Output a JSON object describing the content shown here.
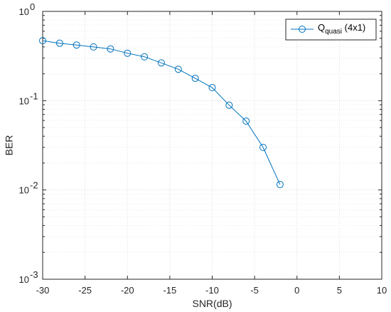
{
  "chart_data": {
    "type": "line",
    "title": "",
    "xlabel": "SNR(dB)",
    "ylabel": "BER",
    "xlim": [
      -30,
      10
    ],
    "ylim": [
      0.001,
      1
    ],
    "yscale": "log",
    "grid": true,
    "x_ticks": [
      -30,
      -25,
      -20,
      -15,
      -10,
      -5,
      0,
      5,
      10
    ],
    "x_tick_labels": [
      "-30",
      "-25",
      "-20",
      "-15",
      "-10",
      "-5",
      "0",
      "5",
      "10"
    ],
    "y_ticks": [
      {
        "value": 0.001,
        "base": "10",
        "exp": "-3"
      },
      {
        "value": 0.01,
        "base": "10",
        "exp": "-2"
      },
      {
        "value": 0.1,
        "base": "10",
        "exp": "-1"
      },
      {
        "value": 1,
        "base": "10",
        "exp": "0"
      }
    ],
    "legend": {
      "position": "top-right",
      "entries": [
        {
          "main": "Q",
          "sub": "quasi",
          "suffix": " (4x1)"
        }
      ]
    },
    "series": [
      {
        "name": "Q quasi (4x1)",
        "color": "#0072BD",
        "marker": "circle",
        "x": [
          -30,
          -28,
          -26,
          -24,
          -22,
          -20,
          -18,
          -16,
          -14,
          -12,
          -10,
          -8,
          -6,
          -4,
          -2
        ],
        "y": [
          0.47,
          0.44,
          0.42,
          0.4,
          0.38,
          0.34,
          0.31,
          0.265,
          0.225,
          0.178,
          0.14,
          0.089,
          0.059,
          0.03,
          0.0115
        ]
      }
    ]
  }
}
